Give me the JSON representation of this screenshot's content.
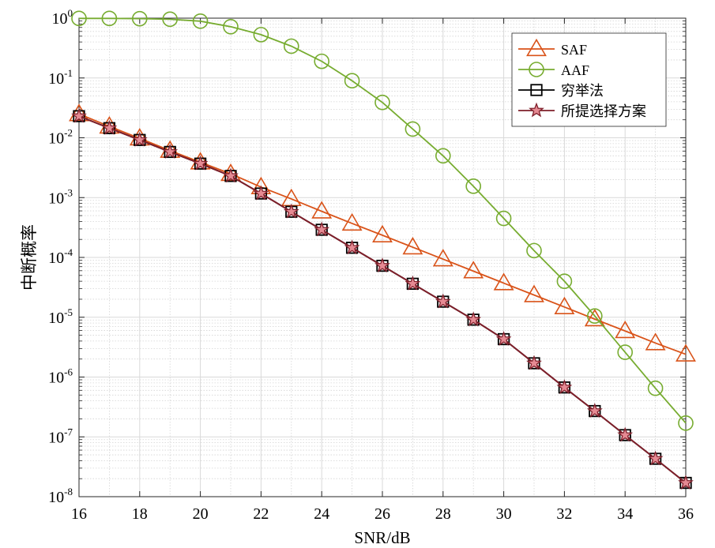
{
  "chart_data": {
    "type": "line",
    "title": "",
    "xlabel": "SNR/dB",
    "ylabel": "中断概率",
    "xlim": [
      16,
      36
    ],
    "ylim": [
      1e-08,
      1
    ],
    "yscale": "log",
    "grid": true,
    "minor_grid": true,
    "legend_position": "top-right",
    "x_ticks": [
      16,
      18,
      20,
      22,
      24,
      26,
      28,
      30,
      32,
      34,
      36
    ],
    "y_ticks": [
      {
        "base": "10",
        "exp": "0",
        "value": 1
      },
      {
        "base": "10",
        "exp": "-1",
        "value": 0.1
      },
      {
        "base": "10",
        "exp": "-2",
        "value": 0.01
      },
      {
        "base": "10",
        "exp": "-3",
        "value": 0.001
      },
      {
        "base": "10",
        "exp": "-4",
        "value": 0.0001
      },
      {
        "base": "10",
        "exp": "-5",
        "value": 1e-05
      },
      {
        "base": "10",
        "exp": "-6",
        "value": 1e-06
      },
      {
        "base": "10",
        "exp": "-7",
        "value": 1e-07
      },
      {
        "base": "10",
        "exp": "-8",
        "value": 1e-08
      }
    ],
    "x": [
      16,
      17,
      18,
      19,
      20,
      21,
      22,
      23,
      24,
      25,
      26,
      27,
      28,
      29,
      30,
      31,
      32,
      33,
      34,
      35,
      36
    ],
    "series": [
      {
        "name": "SAF",
        "color": "#d95319",
        "marker": "triangle",
        "values": [
          0.025,
          0.0155,
          0.0098,
          0.0061,
          0.0039,
          0.0025,
          0.0015,
          0.00095,
          0.00059,
          0.00037,
          0.000235,
          0.000148,
          9.35e-05,
          5.9e-05,
          3.72e-05,
          2.35e-05,
          1.48e-05,
          9.3e-06,
          5.9e-06,
          3.7e-06,
          2.4e-06
        ]
      },
      {
        "name": "AAF",
        "color": "#77ac30",
        "marker": "circle",
        "values": [
          0.99,
          0.99,
          0.98,
          0.96,
          0.89,
          0.72,
          0.53,
          0.34,
          0.19,
          0.09,
          0.039,
          0.014,
          0.005,
          0.00155,
          0.00045,
          0.00013,
          4e-05,
          1.05e-05,
          2.6e-06,
          6.5e-07,
          1.7e-07
        ]
      },
      {
        "name": "穷举法",
        "color": "#000000",
        "marker": "square",
        "values": [
          0.023,
          0.0145,
          0.0092,
          0.0058,
          0.0037,
          0.0023,
          0.00117,
          0.00058,
          0.00029,
          0.000145,
          7.25e-05,
          3.63e-05,
          1.82e-05,
          9.1e-06,
          4.3e-06,
          1.7e-06,
          6.7e-07,
          2.7e-07,
          1.07e-07,
          4.3e-08,
          1.7e-08
        ]
      },
      {
        "name": "所提选择方案",
        "color": "#7e1f2a",
        "marker": "star",
        "values": [
          0.023,
          0.0145,
          0.0092,
          0.0058,
          0.0037,
          0.0023,
          0.00117,
          0.00058,
          0.00029,
          0.000145,
          7.25e-05,
          3.63e-05,
          1.82e-05,
          9.1e-06,
          4.3e-06,
          1.7e-06,
          6.7e-07,
          2.7e-07,
          1.07e-07,
          4.3e-08,
          1.7e-08
        ]
      }
    ]
  }
}
